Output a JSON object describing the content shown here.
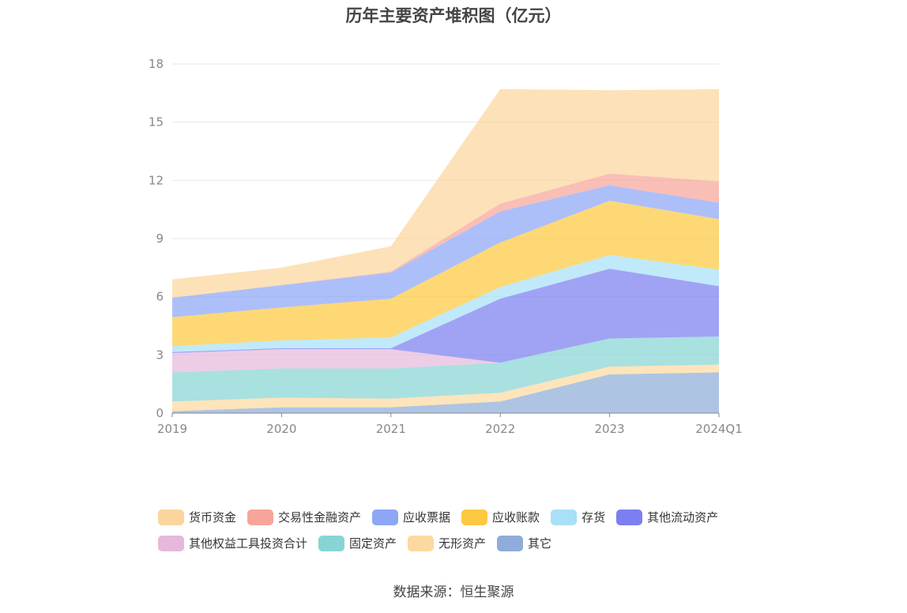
{
  "chart_data": {
    "type": "area",
    "stacked": true,
    "title": "历年主要资产堆积图（亿元）",
    "categories": [
      "2019",
      "2020",
      "2021",
      "2022",
      "2023",
      "2024Q1"
    ],
    "ylim": [
      0,
      18
    ],
    "yticks": [
      "0",
      "3",
      "6",
      "9",
      "12",
      "15",
      "18"
    ],
    "grid": true,
    "legend_position": "bottom",
    "series": [
      {
        "name": "其它",
        "color": "#8fadd8",
        "values": [
          0.1,
          0.3,
          0.3,
          0.6,
          2.0,
          2.1
        ]
      },
      {
        "name": "无形资产",
        "color": "#fcd9a0",
        "values": [
          0.5,
          0.5,
          0.45,
          0.45,
          0.4,
          0.4
        ]
      },
      {
        "name": "固定资产",
        "color": "#88d4d4",
        "values": [
          1.5,
          1.5,
          1.55,
          1.55,
          1.45,
          1.45
        ]
      },
      {
        "name": "其他权益工具投资合计",
        "color": "#e6b8dc",
        "values": [
          1.0,
          1.0,
          1.0,
          0.0,
          0.0,
          0.0
        ]
      },
      {
        "name": "其他流动资产",
        "color": "#7b7ff0",
        "values": [
          0.05,
          0.05,
          0.05,
          3.3,
          3.6,
          2.6
        ]
      },
      {
        "name": "存货",
        "color": "#a8e0f8",
        "values": [
          0.3,
          0.4,
          0.55,
          0.6,
          0.7,
          0.85
        ]
      },
      {
        "name": "应收账款",
        "color": "#fcc940",
        "values": [
          1.5,
          1.7,
          2.0,
          2.3,
          2.8,
          2.6
        ]
      },
      {
        "name": "应收票据",
        "color": "#8ea6f6",
        "values": [
          1.0,
          1.15,
          1.35,
          1.6,
          0.8,
          0.85
        ]
      },
      {
        "name": "交易性金融资产",
        "color": "#f7a59a",
        "values": [
          0.0,
          0.0,
          0.05,
          0.4,
          0.6,
          1.1
        ]
      },
      {
        "name": "货币资金",
        "color": "#fcd59c",
        "values": [
          0.95,
          0.9,
          1.3,
          5.9,
          4.3,
          4.75
        ]
      }
    ]
  },
  "legend": {
    "rows": [
      [
        {
          "label": "货币资金",
          "color": "#fcd59c"
        },
        {
          "label": "交易性金融资产",
          "color": "#f7a59a"
        },
        {
          "label": "应收票据",
          "color": "#8ea6f6"
        },
        {
          "label": "应收账款",
          "color": "#fcc940"
        },
        {
          "label": "存货",
          "color": "#a8e0f8"
        },
        {
          "label": "其他流动资产",
          "color": "#7b7ff0"
        }
      ],
      [
        {
          "label": "其他权益工具投资合计",
          "color": "#e6b8dc"
        },
        {
          "label": "固定资产",
          "color": "#88d4d4"
        },
        {
          "label": "无形资产",
          "color": "#fcd9a0"
        },
        {
          "label": "其它",
          "color": "#8fadd8"
        }
      ]
    ]
  },
  "source": "数据来源：恒生聚源"
}
